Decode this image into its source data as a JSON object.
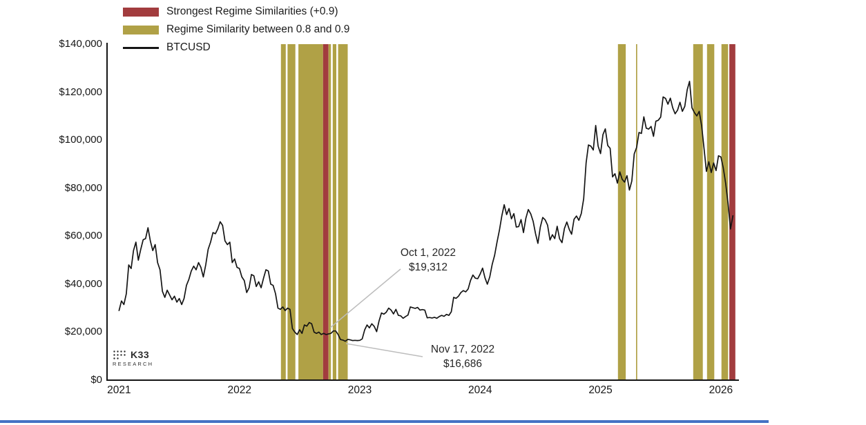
{
  "logo": {
    "name": "K33",
    "sub": "RESEARCH"
  },
  "footer": {
    "accent_color": "#4472c4"
  },
  "chart_data": {
    "type": "line",
    "title": "",
    "legend": [
      {
        "label": "Strongest Regime Similarities (+0.9)",
        "swatch": "red"
      },
      {
        "label": "Regime Similarity between 0.8 and 0.9",
        "swatch": "olive"
      },
      {
        "label": "BTCUSD",
        "swatch": "line"
      }
    ],
    "colors": {
      "red": "#a23c3e",
      "olive": "#b0a146",
      "line": "#141414",
      "axis": "#141414",
      "leader": "#bdbdbd"
    },
    "x_domain": [
      2020.9,
      2026.15
    ],
    "y_domain": [
      0,
      140
    ],
    "y_unit": "USD thousands",
    "y_ticks": [
      {
        "v": 0,
        "label": "$0"
      },
      {
        "v": 20,
        "label": "$20,000"
      },
      {
        "v": 40,
        "label": "$40,000"
      },
      {
        "v": 60,
        "label": "$60,000"
      },
      {
        "v": 80,
        "label": "$80,000"
      },
      {
        "v": 100,
        "label": "$100,000"
      },
      {
        "v": 120,
        "label": "$120,000"
      },
      {
        "v": 140,
        "label": "$140,000"
      }
    ],
    "x_ticks": [
      {
        "v": 2021,
        "label": "2021"
      },
      {
        "v": 2022,
        "label": "2022"
      },
      {
        "v": 2023,
        "label": "2023"
      },
      {
        "v": 2024,
        "label": "2024"
      },
      {
        "v": 2025,
        "label": "2025"
      },
      {
        "v": 2026,
        "label": "2026"
      }
    ],
    "bands": [
      {
        "start": 2022.345,
        "end": 2022.385,
        "type": "olive"
      },
      {
        "start": 2022.4,
        "end": 2022.465,
        "type": "olive"
      },
      {
        "start": 2022.49,
        "end": 2022.695,
        "type": "olive"
      },
      {
        "start": 2022.695,
        "end": 2022.74,
        "type": "red"
      },
      {
        "start": 2022.74,
        "end": 2022.76,
        "type": "olive"
      },
      {
        "start": 2022.775,
        "end": 2022.805,
        "type": "olive"
      },
      {
        "start": 2022.82,
        "end": 2022.9,
        "type": "olive"
      },
      {
        "start": 2025.145,
        "end": 2025.21,
        "type": "olive"
      },
      {
        "start": 2025.295,
        "end": 2025.305,
        "type": "olive"
      },
      {
        "start": 2025.77,
        "end": 2025.85,
        "type": "olive"
      },
      {
        "start": 2025.885,
        "end": 2025.945,
        "type": "olive"
      },
      {
        "start": 2026.005,
        "end": 2026.06,
        "type": "olive"
      },
      {
        "start": 2026.07,
        "end": 2026.12,
        "type": "red"
      }
    ],
    "annotations": [
      {
        "date": "Oct 1, 2022",
        "value": "$19,312",
        "x": 2022.75,
        "y": 19.312
      },
      {
        "date": "Nov 17, 2022",
        "value": "$16,686",
        "x": 2022.875,
        "y": 16.686
      }
    ],
    "series": {
      "name": "BTCUSD",
      "x_start": 2021.0,
      "x_step": 0.02,
      "values": [
        29,
        33,
        31.5,
        36,
        48,
        46.5,
        54,
        57.5,
        50,
        54.5,
        58.5,
        59,
        63.5,
        58,
        54,
        56.5,
        49,
        46,
        37,
        34.5,
        37.5,
        35.5,
        33.5,
        35,
        32.5,
        34,
        31.5,
        34,
        39.5,
        42,
        45.5,
        47.5,
        46,
        49,
        47,
        43,
        48,
        54.5,
        57.5,
        61.5,
        61,
        63,
        66,
        64.5,
        58,
        56.5,
        57.5,
        49,
        50.5,
        47,
        46.5,
        43,
        41.5,
        36.5,
        38.5,
        44,
        43.5,
        39,
        41,
        38.5,
        42.5,
        46,
        45.5,
        40,
        39.5,
        36,
        30,
        29.5,
        30.5,
        29,
        30,
        29.5,
        21.5,
        20,
        19,
        21,
        19.5,
        23,
        22.5,
        24,
        23.5,
        20,
        19.5,
        20,
        19,
        19.5,
        19,
        19.3,
        19.5,
        20.5,
        20.5,
        19,
        16.9,
        16.7,
        16.2,
        17,
        16.8,
        16.5,
        16.6,
        16.5,
        16.6,
        17.2,
        20.9,
        23,
        21.8,
        23.5,
        22.4,
        20.2,
        24.7,
        28,
        27.5,
        28.3,
        30,
        29.2,
        27.6,
        29.5,
        27,
        26.8,
        25.8,
        26.5,
        27.1,
        30.5,
        30.2,
        29.9,
        30.3,
        29.2,
        29.4,
        29.2,
        26,
        26.1,
        25.9,
        26.2,
        25.8,
        26.5,
        27,
        26.6,
        27.4,
        27,
        28.5,
        34.5,
        34.1,
        35,
        36.5,
        37.3,
        36.8,
        38,
        41.5,
        43.8,
        42.5,
        42.3,
        44.2,
        46.7,
        42.6,
        40,
        43,
        48.2,
        52,
        57.5,
        62.5,
        68.5,
        73.1,
        69,
        71.5,
        67.2,
        69.4,
        63.8,
        64,
        66.9,
        61.5,
        67.5,
        71.1,
        69.3,
        66.2,
        61,
        57,
        63.8,
        67.8,
        66.8,
        64.6,
        58.4,
        60.6,
        59,
        64.1,
        58.9,
        57.3,
        63.2,
        65.9,
        62.8,
        60.8,
        67,
        68.4,
        66.6,
        69.4,
        75.6,
        90.5,
        98,
        97.5,
        95.9,
        106.1,
        97.5,
        94.4,
        102.3,
        104.7,
        97.8,
        96.6,
        84.7,
        86,
        82.1,
        86.8,
        83.7,
        82.5,
        85.2,
        79.2,
        83,
        94.3,
        97,
        103.2,
        102.8,
        109.7,
        105,
        104.6,
        105.7,
        101.6,
        107.9,
        108.3,
        109.6,
        118,
        117.4,
        115,
        117.5,
        113.5,
        111,
        112.5,
        115.8,
        112,
        114.1,
        121,
        124.5,
        113.5,
        111.5,
        110.1,
        112,
        106,
        96.5,
        87,
        91,
        86.5,
        90.5,
        87.3,
        93.5,
        93,
        88.5,
        82,
        73.5,
        63,
        68.5
      ]
    }
  }
}
